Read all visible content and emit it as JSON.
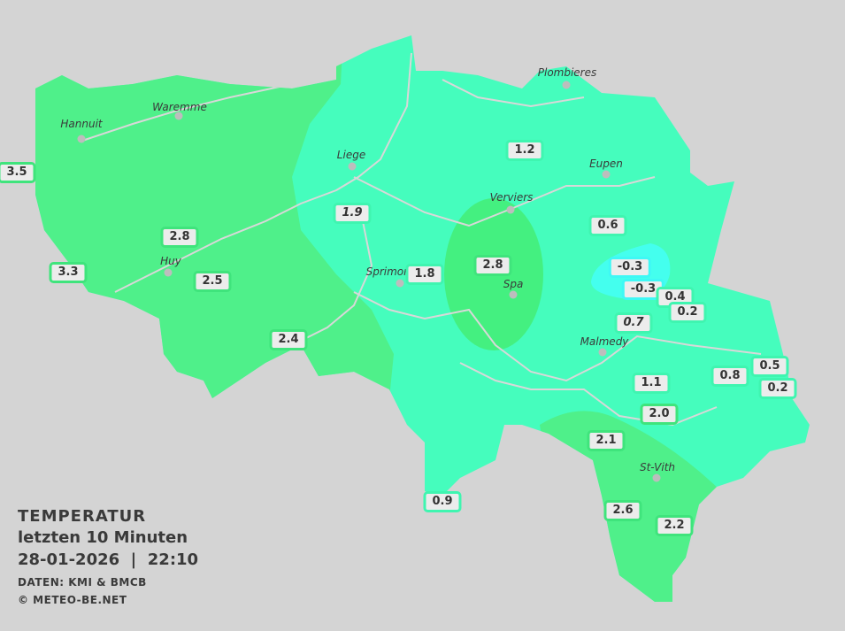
{
  "legend": {
    "title": "TEMPERATUR",
    "period": "letzten 10 Minuten",
    "datetime": "28-01-2026  |  22:10",
    "source": "DATEN: KMI & BMCB",
    "copyright": "© METEO-BE.NET"
  },
  "zone_colors": {
    "background": "#d4d4d4",
    "warm_green": "#4ff08a",
    "turquoise": "#45fdbd",
    "cyan": "#44ffee",
    "river": "#d8d8d8"
  },
  "cities": [
    "Hannuit",
    "Waremme",
    "Liege",
    "Huy",
    "Verviers",
    "Eupen",
    "Plombieres",
    "Sprimont",
    "Spa",
    "Malmedy",
    "St-Vith"
  ],
  "stations": [
    {
      "value": "3.5",
      "italic": false,
      "zone": "green"
    },
    {
      "value": "2.8",
      "italic": false,
      "zone": "green"
    },
    {
      "value": "3.3",
      "italic": false,
      "zone": "green"
    },
    {
      "value": "2.5",
      "italic": false,
      "zone": "green"
    },
    {
      "value": "2.4",
      "italic": false,
      "zone": "green"
    },
    {
      "value": "1.9",
      "italic": true,
      "zone": "turquoise"
    },
    {
      "value": "1.8",
      "italic": false,
      "zone": "turquoise"
    },
    {
      "value": "2.8",
      "italic": false,
      "zone": "green"
    },
    {
      "value": "1.2",
      "italic": false,
      "zone": "turquoise"
    },
    {
      "value": "0.6",
      "italic": false,
      "zone": "turquoise"
    },
    {
      "value": "-0.3",
      "italic": false,
      "zone": "cyan"
    },
    {
      "value": "-0.3",
      "italic": false,
      "zone": "cyan"
    },
    {
      "value": "0.4",
      "italic": false,
      "zone": "turquoise"
    },
    {
      "value": "0.2",
      "italic": false,
      "zone": "turquoise"
    },
    {
      "value": "0.7",
      "italic": true,
      "zone": "turquoise"
    },
    {
      "value": "1.1",
      "italic": false,
      "zone": "turquoise"
    },
    {
      "value": "0.8",
      "italic": false,
      "zone": "turquoise"
    },
    {
      "value": "0.5",
      "italic": false,
      "zone": "turquoise"
    },
    {
      "value": "0.2",
      "italic": false,
      "zone": "turquoise"
    },
    {
      "value": "2.0",
      "italic": false,
      "zone": "green"
    },
    {
      "value": "2.1",
      "italic": false,
      "zone": "green"
    },
    {
      "value": "0.9",
      "italic": false,
      "zone": "turquoise"
    },
    {
      "value": "2.6",
      "italic": false,
      "zone": "green"
    },
    {
      "value": "2.2",
      "italic": false,
      "zone": "green"
    }
  ]
}
